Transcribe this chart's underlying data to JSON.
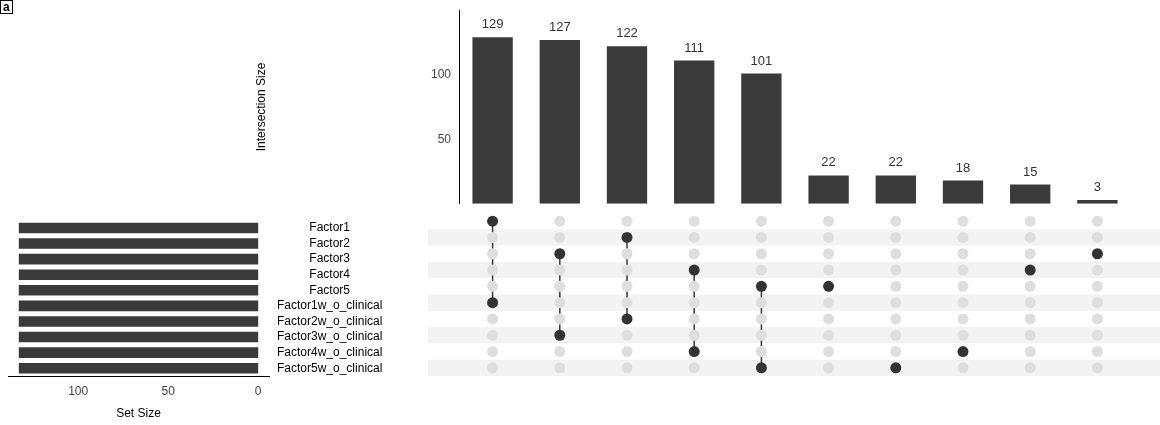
{
  "chart_data": [
    {
      "type": "bar",
      "ylabel": "Intersection Size",
      "categories": [
        null,
        null,
        null,
        null,
        null,
        null,
        null,
        null,
        null,
        null
      ],
      "values": [
        129,
        127,
        122,
        111,
        101,
        22,
        22,
        18,
        15,
        3
      ],
      "color": "#3a3a3a",
      "ylim": [
        0,
        150
      ],
      "yticks": [
        50,
        100
      ],
      "data_labels": true,
      "tick_labels": "y",
      "grid": false,
      "legend": false,
      "annotations": [
        "a"
      ]
    },
    {
      "type": "bar",
      "orientation": "horizontal",
      "xlabel": "Set Size",
      "categories": [
        "Factor1",
        "Factor2",
        "Factor3",
        "Factor4",
        "Factor5",
        "Factor1w_o_clinical",
        "Factor2w_o_clinical",
        "Factor3w_o_clinical",
        "Factor4w_o_clinical",
        "Factor5w_o_clinical"
      ],
      "values": [
        133,
        133,
        133,
        133,
        133,
        133,
        133,
        133,
        133,
        133
      ],
      "color": "#3a3a3a",
      "xlim": [
        139,
        -6
      ],
      "xticks": [
        100,
        50,
        0
      ],
      "grid": false,
      "legend": false
    }
  ]
}
